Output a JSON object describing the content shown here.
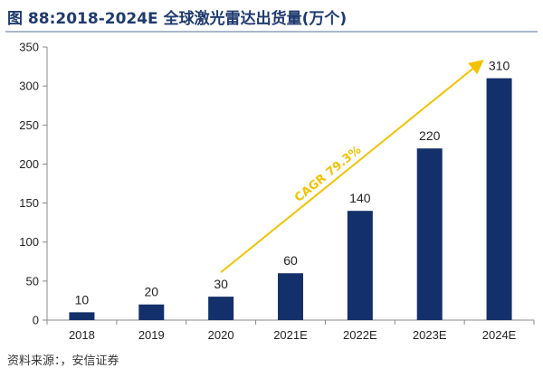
{
  "header": {
    "title": "图 88:2018-2024E 全球激光雷达出货量(万个)"
  },
  "footer": {
    "source": "资料来源：，安信证券"
  },
  "colors": {
    "bar": "#14306b",
    "arrow": "#f2c200",
    "axis": "#888888"
  },
  "chart_data": {
    "type": "bar",
    "title": "图 88:2018-2024E 全球激光雷达出货量(万个)",
    "categories": [
      "2018",
      "2019",
      "2020",
      "2021E",
      "2022E",
      "2023E",
      "2024E"
    ],
    "values": [
      10,
      20,
      30,
      60,
      140,
      220,
      310
    ],
    "data_labels": [
      "10",
      "20",
      "30",
      "60",
      "140",
      "220",
      "310"
    ],
    "y_ticks": [
      0,
      50,
      100,
      150,
      200,
      250,
      300,
      350
    ],
    "ylim": [
      0,
      350
    ],
    "xlabel": "",
    "ylabel": "",
    "grid": false,
    "annotation": {
      "text": "CAGR 79.3%",
      "from_category": "2020",
      "to_category": "2024E"
    }
  }
}
